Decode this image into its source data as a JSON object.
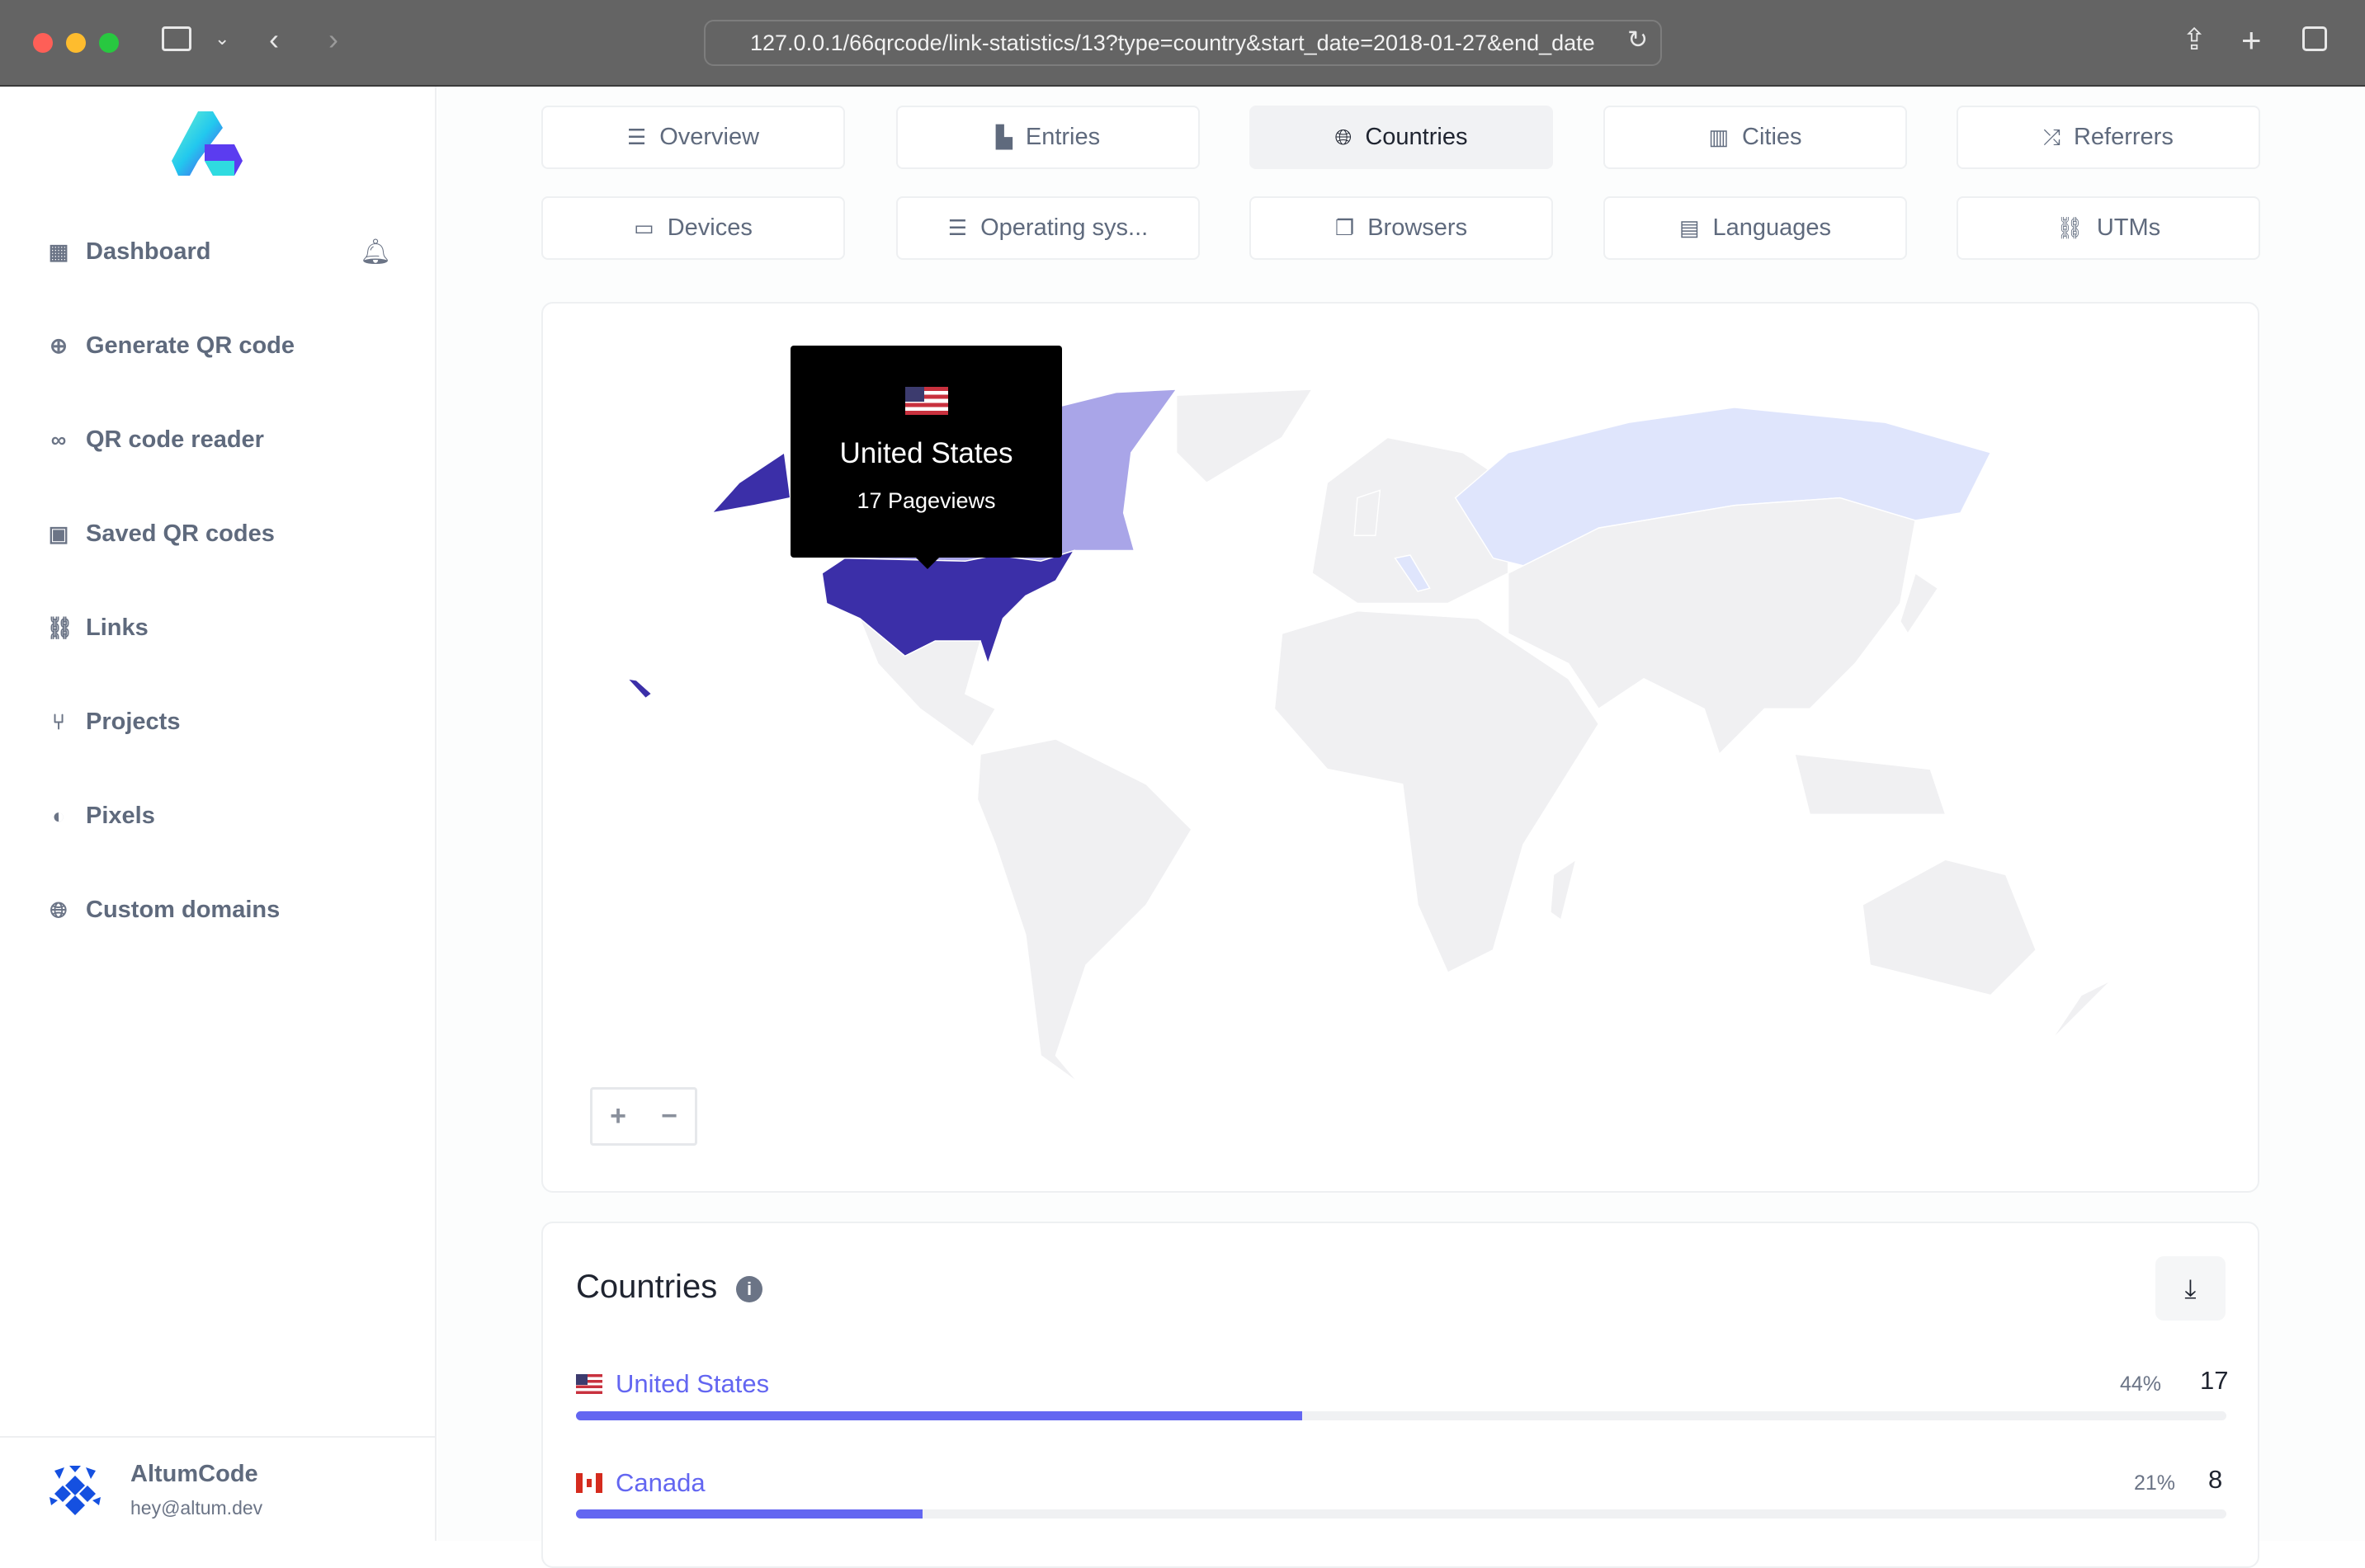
{
  "browser": {
    "url": "127.0.0.1/66qrcode/link-statistics/13?type=country&start_date=2018-01-27&end_date"
  },
  "sidebar": {
    "items": [
      {
        "label": "Dashboard",
        "icon": "grid-icon"
      },
      {
        "label": "Generate QR code",
        "icon": "plus-circle-icon"
      },
      {
        "label": "QR code reader",
        "icon": "glasses-icon"
      },
      {
        "label": "Saved QR codes",
        "icon": "qrcode-icon"
      },
      {
        "label": "Links",
        "icon": "link-icon"
      },
      {
        "label": "Projects",
        "icon": "project-diagram-icon"
      },
      {
        "label": "Pixels",
        "icon": "adjust-icon"
      },
      {
        "label": "Custom domains",
        "icon": "globe-icon"
      }
    ],
    "user": {
      "name": "AltumCode",
      "email": "hey@altum.dev"
    }
  },
  "tabs": [
    {
      "label": "Overview",
      "icon": "list-icon"
    },
    {
      "label": "Entries",
      "icon": "chart-bar-icon"
    },
    {
      "label": "Countries",
      "icon": "globe-icon",
      "active": true
    },
    {
      "label": "Cities",
      "icon": "city-icon"
    },
    {
      "label": "Referrers",
      "icon": "random-icon"
    },
    {
      "label": "Devices",
      "icon": "laptop-icon"
    },
    {
      "label": "Operating sys...",
      "icon": "server-icon"
    },
    {
      "label": "Browsers",
      "icon": "window-icon"
    },
    {
      "label": "Languages",
      "icon": "language-icon"
    },
    {
      "label": "UTMs",
      "icon": "link-icon"
    }
  ],
  "map": {
    "tooltip": {
      "country": "United States",
      "value": "17 Pageviews"
    },
    "zoom_in": "+",
    "zoom_out": "−",
    "colors": {
      "United States": "#3b2fa8",
      "Canada": "#a9a5e8",
      "Russia": "#dfe5fc",
      "other": "#f0f0f2"
    }
  },
  "countries": {
    "title": "Countries",
    "rows": [
      {
        "name": "United States",
        "percent": "44%",
        "count": "17",
        "fraction": 0.44
      },
      {
        "name": "Canada",
        "percent": "21%",
        "count": "8",
        "fraction": 0.21
      }
    ],
    "bar_color": "#6366f1"
  }
}
